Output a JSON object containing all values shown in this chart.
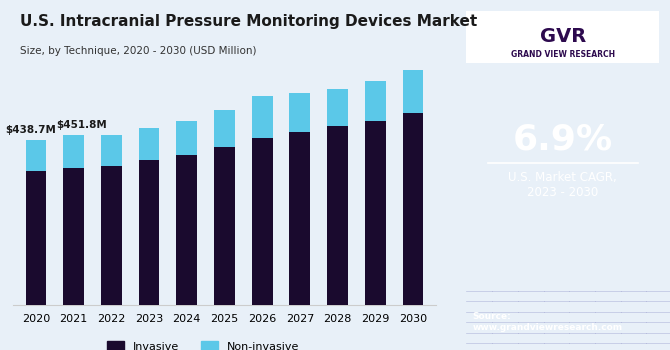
{
  "title": "U.S. Intracranial Pressure Monitoring Devices Market",
  "subtitle": "Size, by Technique, 2020 - 2030 (USD Million)",
  "years": [
    2020,
    2021,
    2022,
    2023,
    2024,
    2025,
    2026,
    2027,
    2028,
    2029,
    2030
  ],
  "invasive": [
    355,
    365,
    370,
    385,
    400,
    420,
    445,
    460,
    475,
    490,
    510
  ],
  "noninvasive": [
    84,
    87,
    82,
    85,
    90,
    100,
    110,
    105,
    100,
    105,
    115
  ],
  "bar_color_invasive": "#1a0a2e",
  "bar_color_noninvasive": "#5bc8e8",
  "bg_color_chart": "#e8f0f8",
  "bg_color_sidebar": "#2d0a4e",
  "annotation_2020": "$438.7M",
  "annotation_2021": "$451.8M",
  "cagr_text": "6.9%",
  "cagr_label": "U.S. Market CAGR,\n2023 - 2030",
  "source_text": "Source:\nwww.grandviewresearch.com",
  "legend_invasive": "Invasive",
  "legend_noninvasive": "Non-invasive"
}
